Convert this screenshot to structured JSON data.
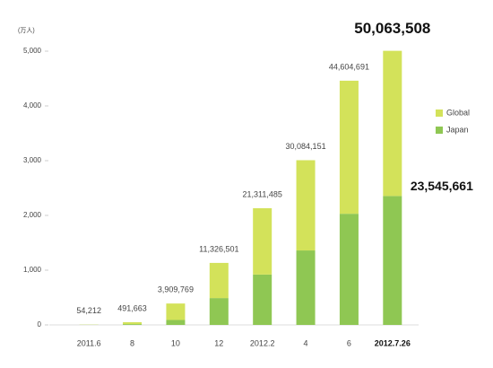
{
  "chart_data": {
    "type": "stacked_bar",
    "y_unit": "(万人)",
    "categories": [
      "2011.6",
      "8",
      "10",
      "12",
      "2012.2",
      "4",
      "6",
      "2012.7.26"
    ],
    "series": [
      {
        "name": "Japan",
        "color": "#8fc753",
        "values": [
          2,
          15,
          90,
          490,
          920,
          1360,
          2030,
          2354.5661
        ],
        "value_labels": [
          null,
          null,
          null,
          null,
          null,
          null,
          null,
          "23,545,661"
        ]
      },
      {
        "name": "Global",
        "color": "#d3e25a",
        "values": [
          3.4212,
          34.1663,
          300.9769,
          642.6501,
          1211.1485,
          1648.4151,
          2430.4691,
          2651.7847
        ]
      }
    ],
    "totals": {
      "values": [
        5.4212,
        49.1663,
        390.9769,
        1132.6501,
        2131.1485,
        3008.4151,
        4460.4691,
        5006.3508
      ],
      "value_labels": [
        "54,212",
        "491,663",
        "3,909,769",
        "11,326,501",
        "21,311,485",
        "30,084,151",
        "44,604,691",
        "50,063,508"
      ]
    },
    "ylim": [
      0,
      5500
    ],
    "yticks": [
      0,
      {
        "value": 1000,
        "label": "1,000"
      },
      {
        "value": 2000,
        "label": "2,000"
      },
      {
        "value": 3000,
        "label": "3,000"
      },
      {
        "value": 4000,
        "label": "4,000"
      },
      {
        "value": 5000,
        "label": "5,000"
      }
    ],
    "legend": "right",
    "grid": false
  }
}
